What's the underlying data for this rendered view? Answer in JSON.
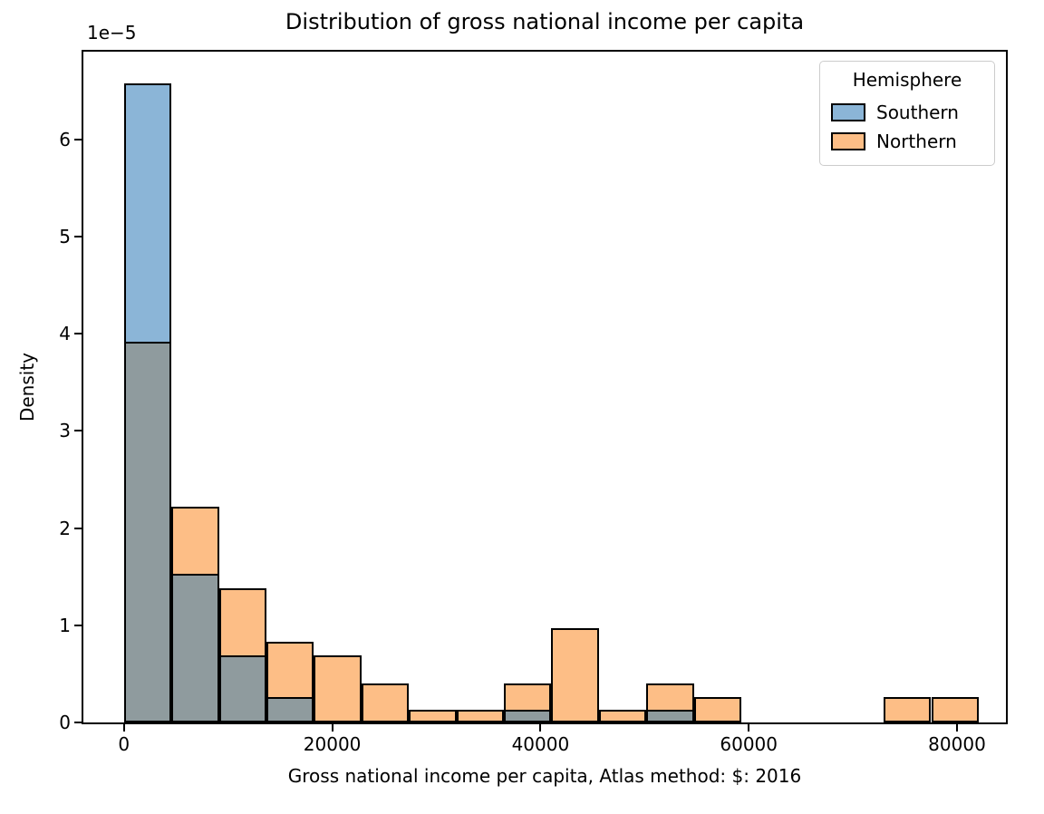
{
  "chart_data": {
    "type": "histogram",
    "title": "Distribution of gross national income per capita",
    "xlabel": "Gross national income per capita, Atlas method: $: 2016",
    "ylabel": "Density",
    "y_offset_text": "1e−5",
    "y_units_note": "densities in units of 1e-5",
    "xlim": [
      -3900,
      84700
    ],
    "ylim": [
      0,
      6.9
    ],
    "x_ticks": [
      0,
      20000,
      40000,
      60000,
      80000
    ],
    "x_tick_labels": [
      "0",
      "20000",
      "40000",
      "60000",
      "80000"
    ],
    "y_ticks": [
      0,
      1,
      2,
      3,
      4,
      5,
      6
    ],
    "y_tick_labels": [
      "0",
      "1",
      "2",
      "3",
      "4",
      "5",
      "6"
    ],
    "bin_edges": [
      0,
      4560,
      9120,
      13680,
      18240,
      22800,
      27360,
      31920,
      36480,
      41040,
      45600,
      50160,
      54720,
      59280,
      63840,
      68400,
      72960,
      77520,
      82080
    ],
    "series": [
      {
        "name": "Southern",
        "fill": "#8BB5D7",
        "values": [
          6.57,
          1.53,
          0.69,
          0.26,
          0,
          0,
          0,
          0,
          0.13,
          0,
          0,
          0.13,
          0,
          0,
          0,
          0,
          0,
          0
        ]
      },
      {
        "name": "Northern",
        "fill": "#FDBE86",
        "values": [
          3.92,
          2.22,
          1.38,
          0.83,
          0.69,
          0.4,
          0.13,
          0.13,
          0.4,
          0.97,
          0.13,
          0.4,
          0.26,
          0,
          0,
          0,
          0.26,
          0.26
        ]
      }
    ],
    "overlap_fill": "#8F9B9E",
    "edge_color": "#000000",
    "grid": false,
    "legend": {
      "title": "Hemisphere",
      "position": "upper right",
      "entries": [
        {
          "label": "Southern",
          "color": "#8BB5D7"
        },
        {
          "label": "Northern",
          "color": "#FDBE86"
        }
      ]
    }
  }
}
